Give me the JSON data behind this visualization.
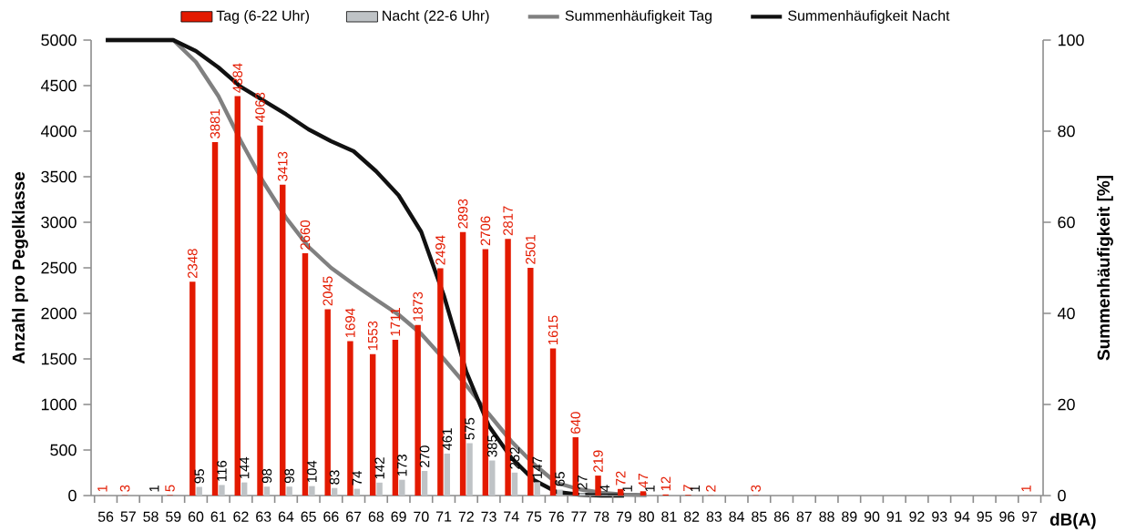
{
  "chart_data": {
    "type": "bar",
    "xlabel": "dB(A)",
    "ylabel": "Anzahl pro Pegelklasse",
    "y2label": "Summenhäufigkeit [%]",
    "categories": [
      "56",
      "57",
      "58",
      "59",
      "60",
      "61",
      "62",
      "63",
      "64",
      "65",
      "66",
      "67",
      "68",
      "69",
      "70",
      "71",
      "72",
      "73",
      "74",
      "75",
      "76",
      "77",
      "78",
      "79",
      "80",
      "81",
      "82",
      "83",
      "84",
      "85",
      "86",
      "87",
      "88",
      "89",
      "90",
      "91",
      "92",
      "93",
      "94",
      "95",
      "96",
      "97"
    ],
    "series": [
      {
        "name": "Tag (6-22 Uhr)",
        "color": "#e31a00",
        "values": [
          1,
          3,
          null,
          5,
          2348,
          3881,
          4384,
          4063,
          3413,
          2660,
          2045,
          1694,
          1553,
          1711,
          1873,
          2494,
          2893,
          2706,
          2817,
          2501,
          1615,
          640,
          219,
          72,
          47,
          12,
          7,
          2,
          null,
          3,
          null,
          null,
          null,
          null,
          null,
          null,
          null,
          null,
          null,
          null,
          null,
          1
        ],
        "value_labels": [
          "1",
          "3",
          null,
          "5",
          "2348",
          "3881",
          "4384",
          "4063",
          "3413",
          "2660",
          "2045",
          "1694",
          "1553",
          "1711",
          "1873",
          "2494",
          "2893",
          "2706",
          "2817",
          "2501",
          "1615",
          "640",
          "219",
          "72",
          "47",
          "12",
          "7",
          "2",
          null,
          "3",
          null,
          null,
          null,
          null,
          null,
          null,
          null,
          null,
          null,
          null,
          null,
          "1"
        ]
      },
      {
        "name": "Nacht (22-6 Uhr)",
        "color": "#bfc3c6",
        "values": [
          null,
          null,
          1,
          null,
          95,
          116,
          144,
          98,
          98,
          104,
          83,
          74,
          142,
          173,
          270,
          461,
          575,
          385,
          252,
          147,
          65,
          27,
          4,
          1,
          1,
          null,
          1,
          null,
          null,
          null,
          null,
          null,
          null,
          null,
          null,
          null,
          null,
          null,
          null,
          null,
          null,
          null
        ],
        "value_labels": [
          null,
          null,
          "1",
          null,
          "95",
          "116",
          "144",
          "98",
          "98",
          "104",
          "83",
          "74",
          "142",
          "173",
          "270",
          "461",
          "575",
          "385",
          "252",
          "147",
          "65",
          "27",
          "4",
          "1",
          "1",
          null,
          "1",
          null,
          null,
          null,
          null,
          null,
          null,
          null,
          null,
          null,
          null,
          null,
          null,
          null,
          null,
          null
        ]
      },
      {
        "name": "Summenhäufigkeit Tag",
        "type": "line",
        "axis": "y2",
        "color": "#808080",
        "values": [
          100,
          100,
          100,
          100,
          95.2,
          87.7,
          77.8,
          68.8,
          61,
          54.6,
          50,
          46.4,
          43,
          39.7,
          35.5,
          30,
          24.2,
          17.9,
          11.9,
          6.9,
          2.8,
          1.4,
          0.6,
          0.2,
          0.1,
          null,
          null,
          null,
          null,
          null,
          null,
          null,
          null,
          null,
          null,
          null,
          null,
          null,
          null,
          null,
          null,
          null
        ]
      },
      {
        "name": "Summenhäufigkeit Nacht",
        "type": "line",
        "axis": "y2",
        "color": "#111111",
        "values": [
          100,
          100,
          100,
          100,
          97.6,
          94,
          89.7,
          86.7,
          83.7,
          80.4,
          77.8,
          75.6,
          71.2,
          65.9,
          57.9,
          44,
          27.2,
          15.3,
          8.3,
          3.4,
          0.8,
          0.2,
          0,
          0,
          null,
          null,
          null,
          null,
          null,
          null,
          null,
          null,
          null,
          null,
          null,
          null,
          null,
          null,
          null,
          null,
          null,
          null
        ]
      }
    ],
    "ylim": [
      0,
      5000
    ],
    "yticks": [
      0,
      500,
      1000,
      1500,
      2000,
      2500,
      3000,
      3500,
      4000,
      4500,
      5000
    ],
    "y2lim": [
      0,
      100
    ],
    "y2ticks": [
      0,
      20,
      40,
      60,
      80,
      100
    ],
    "legend": "top",
    "grid": false,
    "marker": "none",
    "line_style": "solid"
  }
}
